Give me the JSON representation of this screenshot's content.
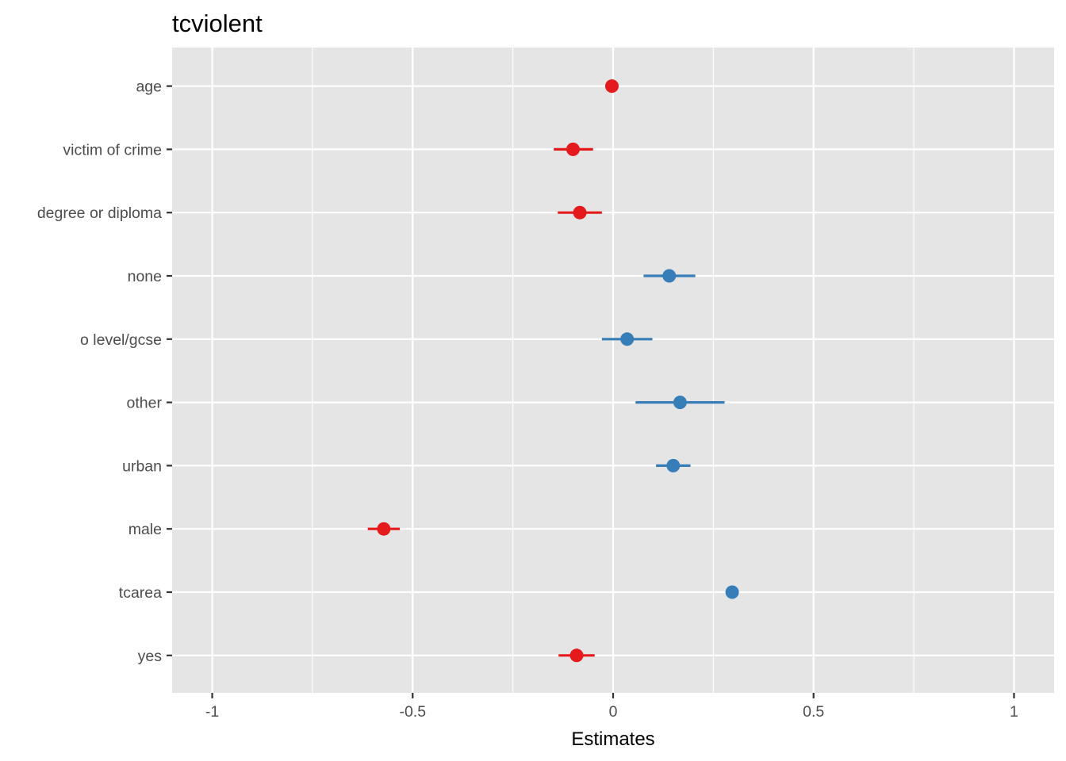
{
  "chart_data": {
    "type": "scatter",
    "subtype": "coefficient-plot",
    "title": "tcviolent",
    "xlabel": "Estimates",
    "ylabel": "",
    "xlim": [
      -1.1,
      1.1
    ],
    "x_ticks": [
      -1,
      -0.5,
      0,
      0.5,
      1
    ],
    "x_tick_labels": [
      "-1",
      "-0.5",
      "0",
      "0.5",
      "1"
    ],
    "grid": true,
    "legend": "none",
    "colors": {
      "negative": "#e41a1c",
      "positive": "#377eb8",
      "panel": "#e5e5e5",
      "grid": "#ffffff"
    },
    "terms": [
      {
        "label": "age",
        "estimate": -0.003,
        "ci_low": -0.006,
        "ci_high": 0.0,
        "sign": "negative"
      },
      {
        "label": "victim of crime",
        "estimate": -0.1,
        "ci_low": -0.148,
        "ci_high": -0.05,
        "sign": "negative"
      },
      {
        "label": "degree or diploma",
        "estimate": -0.083,
        "ci_low": -0.138,
        "ci_high": -0.028,
        "sign": "negative"
      },
      {
        "label": "none",
        "estimate": 0.14,
        "ci_low": 0.076,
        "ci_high": 0.205,
        "sign": "positive"
      },
      {
        "label": "o level/gcse",
        "estimate": 0.035,
        "ci_low": -0.028,
        "ci_high": 0.098,
        "sign": "positive"
      },
      {
        "label": "other",
        "estimate": 0.167,
        "ci_low": 0.056,
        "ci_high": 0.278,
        "sign": "positive"
      },
      {
        "label": "urban",
        "estimate": 0.15,
        "ci_low": 0.107,
        "ci_high": 0.193,
        "sign": "positive"
      },
      {
        "label": "male",
        "estimate": -0.572,
        "ci_low": -0.612,
        "ci_high": -0.532,
        "sign": "negative"
      },
      {
        "label": "tcarea",
        "estimate": 0.297,
        "ci_low": 0.282,
        "ci_high": 0.312,
        "sign": "positive"
      },
      {
        "label": "yes",
        "estimate": -0.091,
        "ci_low": -0.136,
        "ci_high": -0.046,
        "sign": "negative"
      }
    ]
  }
}
